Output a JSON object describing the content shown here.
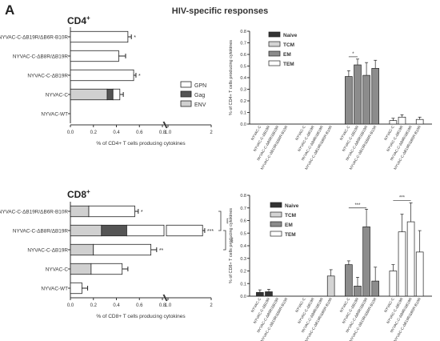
{
  "figure": {
    "panel_letter": "A",
    "title": "HIV-specific responses",
    "cd4_heading": "CD4",
    "cd8_heading": "CD8",
    "heading_sup": "+",
    "x_break_label": "1.0"
  },
  "legend_antigen": [
    {
      "label": "GPN",
      "color": "#ffffff"
    },
    {
      "label": "Gag",
      "color": "#555555"
    },
    {
      "label": "ENV",
      "color": "#d0d0d0"
    }
  ],
  "legend_subset": [
    {
      "label": "Naive",
      "color": "#333333"
    },
    {
      "label": "TCM",
      "color": "#d4d4d4"
    },
    {
      "label": "EM",
      "color": "#8c8c8c"
    },
    {
      "label": "TEM",
      "color": "#ffffff"
    }
  ],
  "chart_data": [
    {
      "type": "bar",
      "orientation": "horizontal",
      "stacked": true,
      "panel": "CD4 total",
      "xlabel": "% of CD4+ T cells producing cytokines",
      "x_ticks": [
        "0.0",
        "0.2",
        "0.4",
        "0.6",
        "0.8",
        "1.0",
        "2"
      ],
      "xlim": [
        0,
        2
      ],
      "axis_break": [
        0.8,
        1.0
      ],
      "categories": [
        "NYVAC-C-ΔB19R/ΔB6R-B10R",
        "NYVAC-C-ΔB8R/ΔB19R",
        "NYVAC-C-ΔB19R",
        "NYVAC-C",
        "NYVAC-WT"
      ],
      "series": [
        {
          "name": "ENV",
          "values": [
            0.0,
            0.0,
            0.0,
            0.32,
            0.0
          ]
        },
        {
          "name": "Gag",
          "values": [
            0.0,
            0.0,
            0.0,
            0.05,
            0.0
          ]
        },
        {
          "name": "GPN",
          "values": [
            0.5,
            0.42,
            0.55,
            0.06,
            0.0
          ]
        }
      ],
      "totals": [
        0.5,
        0.42,
        0.55,
        0.43,
        0.0
      ],
      "errors": [
        0.03,
        0.06,
        0.02,
        0.03,
        0.0
      ],
      "annotations": [
        "*",
        "",
        "*",
        "",
        ""
      ]
    },
    {
      "type": "bar",
      "panel": "CD4 subsets",
      "ylabel": "% of CD4+ T cells producing cytokines",
      "y_ticks": [
        "0.0",
        "0.1",
        "0.2",
        "0.3",
        "0.4",
        "0.5",
        "0.6",
        "0.7",
        "0.8"
      ],
      "ylim": [
        0,
        0.8
      ],
      "groups": [
        "Naive",
        "TCM",
        "EM",
        "TEM"
      ],
      "categories": [
        "NYVAC-C",
        "NYVAC-C-ΔB19R",
        "NYVAC-C-ΔB8R/ΔB19R",
        "NYVAC-C-ΔB19R/ΔB6R-B10R"
      ],
      "series": [
        {
          "name": "Naive",
          "values": [
            0,
            0,
            0,
            0
          ],
          "errors": [
            0,
            0,
            0,
            0
          ]
        },
        {
          "name": "TCM",
          "values": [
            0,
            0,
            0,
            0
          ],
          "errors": [
            0,
            0,
            0,
            0
          ]
        },
        {
          "name": "EM",
          "values": [
            0.41,
            0.51,
            0.42,
            0.48
          ],
          "errors": [
            0.05,
            0.05,
            0.11,
            0.07
          ]
        },
        {
          "name": "TEM",
          "values": [
            0.03,
            0.06,
            0,
            0.04
          ],
          "errors": [
            0.02,
            0.02,
            0,
            0.02
          ]
        }
      ],
      "significance": [
        {
          "group": "EM",
          "between": [
            0,
            1
          ],
          "label": "*"
        }
      ]
    },
    {
      "type": "bar",
      "orientation": "horizontal",
      "stacked": true,
      "panel": "CD8 total",
      "xlabel": "% of CD8+ T cells producing cytokines",
      "x_ticks": [
        "0.0",
        "0.2",
        "0.4",
        "0.6",
        "0.8",
        "1.0",
        "2"
      ],
      "xlim": [
        0,
        2
      ],
      "axis_break": [
        0.8,
        1.0
      ],
      "categories": [
        "NYVAC-C-ΔB19R/ΔB6R-B10R",
        "NYVAC-C-ΔB8R/ΔB19R",
        "NYVAC-C-ΔB19R",
        "NYVAC-C",
        "NYVAC-WT"
      ],
      "series": [
        {
          "name": "ENV",
          "values": [
            0.16,
            0.27,
            0.2,
            0.18,
            0.0
          ]
        },
        {
          "name": "Gag",
          "values": [
            0.0,
            0.22,
            0.0,
            0.0,
            0.0
          ]
        },
        {
          "name": "GPN",
          "values": [
            0.4,
            1.31,
            0.5,
            0.27,
            0.1
          ]
        }
      ],
      "totals": [
        0.56,
        1.8,
        0.7,
        0.45,
        0.1
      ],
      "errors": [
        0.03,
        0.05,
        0.05,
        0.05,
        0.05
      ],
      "annotations": [
        "*",
        "***",
        "**",
        "",
        ""
      ],
      "significance": [
        {
          "between": [
            0,
            1
          ],
          "label": "***"
        },
        {
          "between": [
            1,
            2
          ],
          "label": "***"
        }
      ]
    },
    {
      "type": "bar",
      "panel": "CD8 subsets",
      "ylabel": "% of CD8+ T cells producing cytokines",
      "y_ticks": [
        "0.0",
        "0.1",
        "0.2",
        "0.3",
        "0.4",
        "0.5",
        "0.6",
        "0.7",
        "0.8"
      ],
      "ylim": [
        0,
        0.8
      ],
      "groups": [
        "Naive",
        "TCM",
        "EM",
        "TEM"
      ],
      "categories": [
        "NYVAC-C",
        "NYVAC-C-ΔB19R",
        "NYVAC-C-ΔB8R/ΔB19R",
        "NYVAC-C-ΔB19R/ΔB6R-B10R"
      ],
      "series": [
        {
          "name": "Naive",
          "values": [
            0.03,
            0.035,
            0,
            0
          ],
          "errors": [
            0.02,
            0.02,
            0,
            0
          ]
        },
        {
          "name": "TCM",
          "values": [
            0,
            0,
            0,
            0.16
          ],
          "errors": [
            0,
            0,
            0,
            0.05
          ]
        },
        {
          "name": "EM",
          "values": [
            0.25,
            0.08,
            0.55,
            0.12
          ],
          "errors": [
            0.03,
            0.07,
            0.14,
            0.11
          ]
        },
        {
          "name": "TEM",
          "values": [
            0.2,
            0.51,
            0.59,
            0.35
          ],
          "errors": [
            0.05,
            0.14,
            0.15,
            0.17
          ]
        }
      ],
      "significance": [
        {
          "group": "EM",
          "between": [
            0,
            2
          ],
          "label": "***"
        },
        {
          "group": "TEM",
          "between": [
            0,
            2
          ],
          "label": "***"
        }
      ]
    }
  ]
}
